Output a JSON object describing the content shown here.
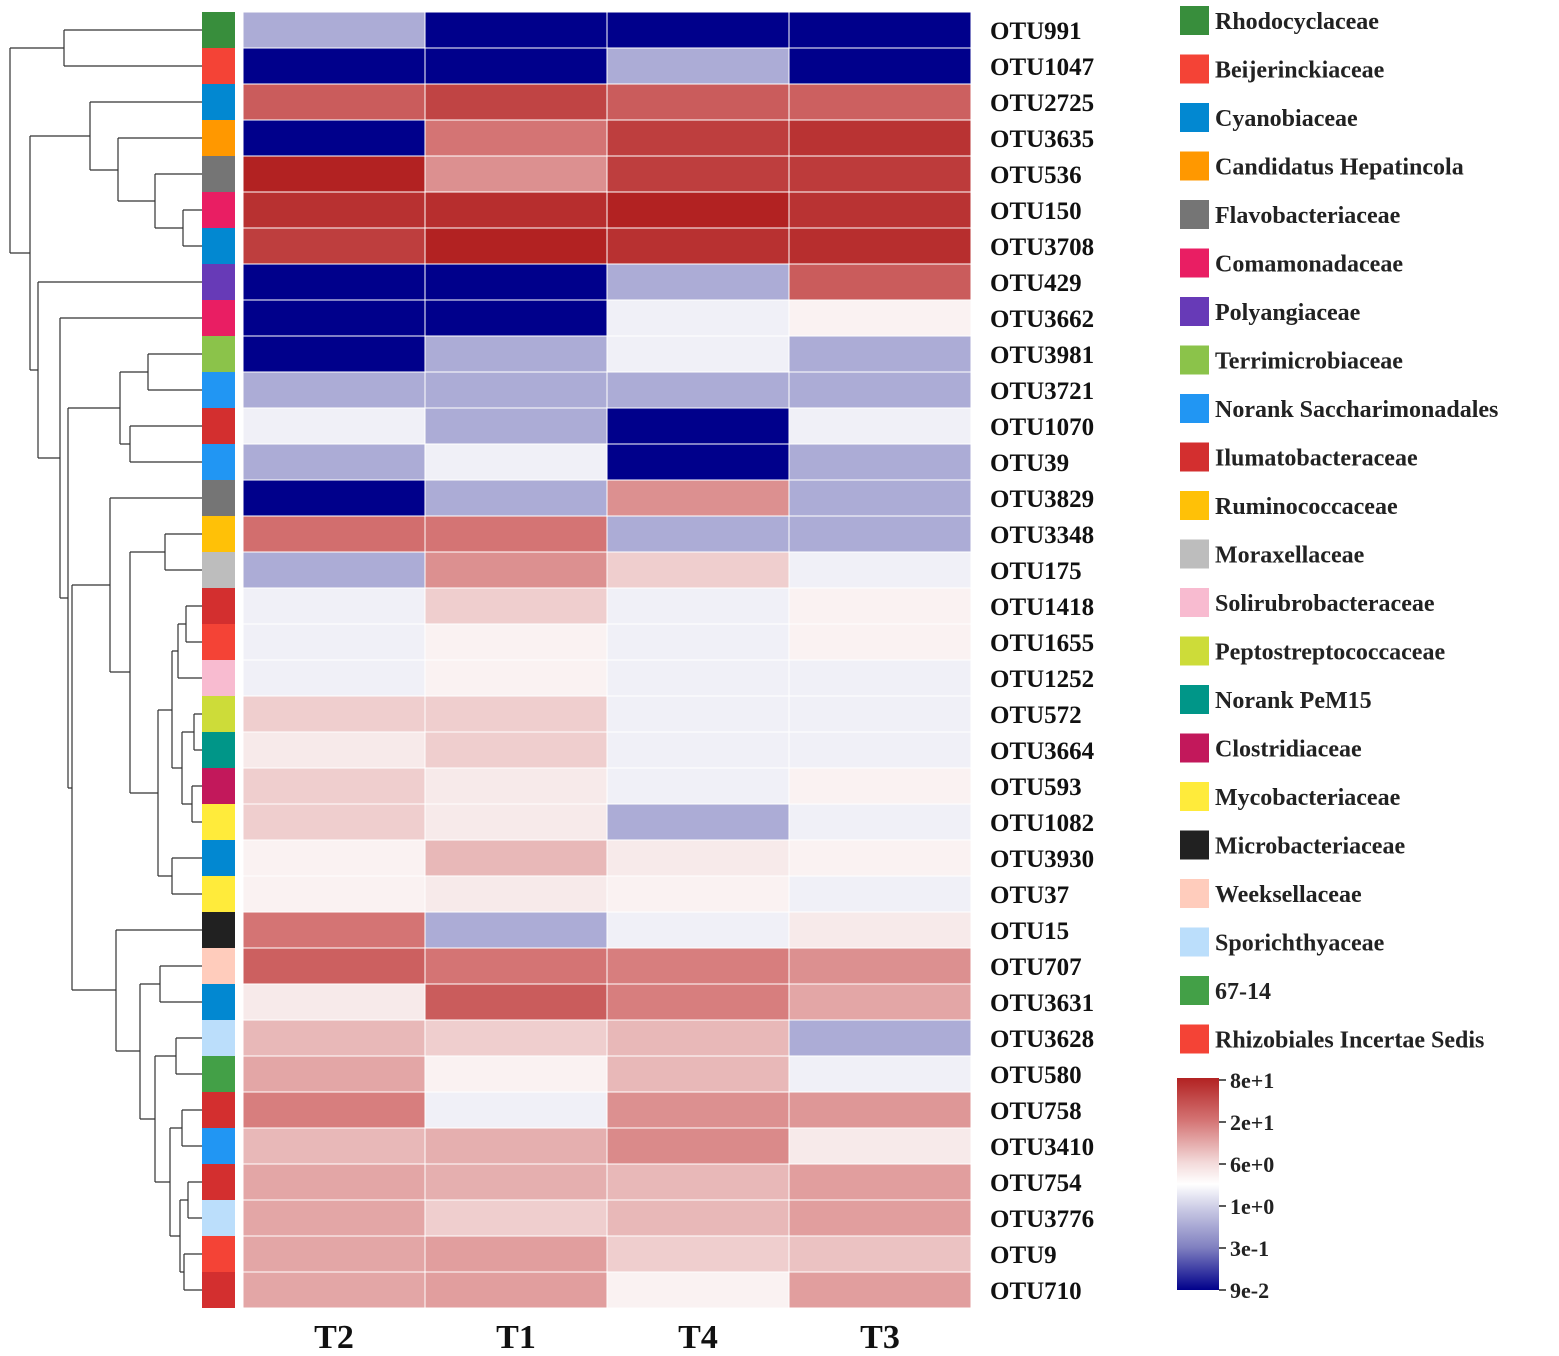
{
  "chart_data": {
    "type": "heatmap",
    "columns": [
      "T2",
      "T1",
      "T4",
      "T3"
    ],
    "rows": [
      {
        "otu": "OTU991",
        "family": "Rhodocyclaceae",
        "values": [
          0.3,
          0.09,
          0.09,
          0.09
        ]
      },
      {
        "otu": "OTU1047",
        "family": "Beijerinckiaceae",
        "values": [
          0.09,
          0.09,
          0.3,
          0.09
        ]
      },
      {
        "otu": "OTU2725",
        "family": "Cyanobiaceae",
        "values": [
          30,
          45,
          30,
          28
        ]
      },
      {
        "otu": "OTU3635",
        "family": "Candidatus Hepatincola",
        "values": [
          0.09,
          20,
          50,
          60
        ]
      },
      {
        "otu": "OTU536",
        "family": "Flavobacteriaceae",
        "values": [
          80,
          15,
          50,
          52
        ]
      },
      {
        "otu": "OTU150",
        "family": "Comamonadaceae",
        "values": [
          62,
          65,
          80,
          60
        ]
      },
      {
        "otu": "OTU3708",
        "family": "Cyanobiaceae",
        "values": [
          50,
          80,
          62,
          65
        ]
      },
      {
        "otu": "OTU429",
        "family": "Polyangiaceae",
        "values": [
          0.09,
          0.09,
          0.3,
          30
        ]
      },
      {
        "otu": "OTU3662",
        "family": "Comamonadaceae",
        "values": [
          0.09,
          0.09,
          0.8,
          3
        ]
      },
      {
        "otu": "OTU3981",
        "family": "Terrimicrobiaceae",
        "values": [
          0.09,
          0.3,
          0.8,
          0.3
        ]
      },
      {
        "otu": "OTU3721",
        "family": "Norank Saccharimonadales",
        "values": [
          0.3,
          0.3,
          0.3,
          0.3
        ]
      },
      {
        "otu": "OTU1070",
        "family": "Ilumatobacteraceae",
        "values": [
          0.8,
          0.3,
          0.09,
          0.8
        ]
      },
      {
        "otu": "OTU39",
        "family": "Norank Saccharimonadales",
        "values": [
          0.3,
          0.8,
          0.09,
          0.3
        ]
      },
      {
        "otu": "OTU3829",
        "family": "Flavobacteriaceae",
        "values": [
          0.09,
          0.3,
          15,
          0.3
        ]
      },
      {
        "otu": "OTU3348",
        "family": "Ruminococcaceae",
        "values": [
          22,
          20,
          0.3,
          0.3
        ]
      },
      {
        "otu": "OTU175",
        "family": "Moraxellaceae",
        "values": [
          0.3,
          15,
          8,
          0.8
        ]
      },
      {
        "otu": "OTU1418",
        "family": "Ilumatobacteraceae",
        "values": [
          0.8,
          8,
          0.8,
          3
        ]
      },
      {
        "otu": "OTU1655",
        "family": "Beijerinckiaceae",
        "values": [
          0.8,
          3,
          0.8,
          3
        ]
      },
      {
        "otu": "OTU1252",
        "family": "Solirubrobacteraceae",
        "values": [
          0.8,
          3,
          0.8,
          0.8
        ]
      },
      {
        "otu": "OTU572",
        "family": "Peptostreptococcaceae",
        "values": [
          8,
          8,
          0.8,
          0.8
        ]
      },
      {
        "otu": "OTU3664",
        "family": "Norank PeM15",
        "values": [
          6,
          8,
          0.8,
          0.8
        ]
      },
      {
        "otu": "OTU593",
        "family": "Clostridiaceae",
        "values": [
          8,
          6,
          0.8,
          3
        ]
      },
      {
        "otu": "OTU1082",
        "family": "Mycobacteriaceae",
        "values": [
          8,
          6,
          0.3,
          0.8
        ]
      },
      {
        "otu": "OTU3930",
        "family": "Cyanobiaceae",
        "values": [
          3,
          10,
          6,
          3
        ]
      },
      {
        "otu": "OTU37",
        "family": "Mycobacteriaceae",
        "values": [
          3,
          6,
          3,
          0.8
        ]
      },
      {
        "otu": "OTU15",
        "family": "Microbacteriaceae",
        "values": [
          20,
          0.3,
          0.8,
          6
        ]
      },
      {
        "otu": "OTU707",
        "family": "Weeksellaceae",
        "values": [
          28,
          20,
          18,
          15
        ]
      },
      {
        "otu": "OTU3631",
        "family": "Cyanobiaceae",
        "values": [
          6,
          30,
          18,
          12
        ]
      },
      {
        "otu": "OTU3628",
        "family": "Sporichthyaceae",
        "values": [
          10,
          8,
          10,
          0.3
        ]
      },
      {
        "otu": "OTU580",
        "family": "67-14",
        "values": [
          12,
          3,
          10,
          0.8
        ]
      },
      {
        "otu": "OTU758",
        "family": "Ilumatobacteraceae",
        "values": [
          18,
          0.8,
          15,
          14
        ]
      },
      {
        "otu": "OTU3410",
        "family": "Norank Saccharimonadales",
        "values": [
          10,
          11,
          16,
          6
        ]
      },
      {
        "otu": "OTU754",
        "family": "Ilumatobacteraceae",
        "values": [
          12,
          11,
          10,
          13
        ]
      },
      {
        "otu": "OTU3776",
        "family": "Sporichthyaceae",
        "values": [
          12,
          8,
          10,
          13
        ]
      },
      {
        "otu": "OTU9",
        "family": "Rhizobiales Incertae Sedis",
        "values": [
          12,
          13,
          8,
          9
        ]
      },
      {
        "otu": "OTU710",
        "family": "Ilumatobacteraceae",
        "values": [
          12,
          13,
          3,
          13
        ]
      }
    ],
    "families": [
      {
        "name": "Rhodocyclaceae",
        "color": "#388E3C"
      },
      {
        "name": "Beijerinckiaceae",
        "color": "#F44336"
      },
      {
        "name": "Cyanobiaceae",
        "color": "#0288D1"
      },
      {
        "name": "Candidatus Hepatincola",
        "color": "#FF9800"
      },
      {
        "name": "Flavobacteriaceae",
        "color": "#757575"
      },
      {
        "name": "Comamonadaceae",
        "color": "#E91E63"
      },
      {
        "name": "Polyangiaceae",
        "color": "#673AB7"
      },
      {
        "name": "Terrimicrobiaceae",
        "color": "#8BC34A"
      },
      {
        "name": "Norank Saccharimonadales",
        "color": "#2196F3"
      },
      {
        "name": "Ilumatobacteraceae",
        "color": "#D32F2F"
      },
      {
        "name": "Ruminococcaceae",
        "color": "#FFC107"
      },
      {
        "name": "Moraxellaceae",
        "color": "#BDBDBD"
      },
      {
        "name": "Solirubrobacteraceae",
        "color": "#F8BBD0"
      },
      {
        "name": "Peptostreptococcaceae",
        "color": "#CDDC39"
      },
      {
        "name": "Norank PeM15",
        "color": "#009688"
      },
      {
        "name": "Clostridiaceae",
        "color": "#C2185B"
      },
      {
        "name": "Mycobacteriaceae",
        "color": "#FFEB3B"
      },
      {
        "name": "Microbacteriaceae",
        "color": "#212121"
      },
      {
        "name": "Weeksellaceae",
        "color": "#FFCCBC"
      },
      {
        "name": "Sporichthyaceae",
        "color": "#BBDEFB"
      },
      {
        "name": "67-14",
        "color": "#43A047"
      },
      {
        "name": "Rhizobiales Incertae Sedis",
        "color": "#F44336"
      }
    ],
    "color_scale": {
      "labels": [
        "8e+1",
        "2e+1",
        "6e+0",
        "1e+0",
        "3e-1",
        "9e-2"
      ],
      "values": [
        80,
        20,
        6,
        1,
        0.3,
        0.09
      ],
      "colors": [
        "#B22222",
        "#D47474",
        "#F7EAEA",
        "#FFFFFF",
        "#ACACD6",
        "#00008B"
      ]
    }
  }
}
